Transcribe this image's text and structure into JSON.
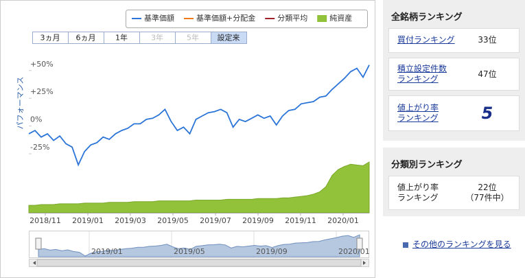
{
  "chart": {
    "type": "line",
    "legend": [
      {
        "name": "基準価額",
        "color": "#2b74d8"
      },
      {
        "name": "基準価額+分配金",
        "color": "#f07a1a"
      },
      {
        "name": "分類平均",
        "color": "#a0202a"
      },
      {
        "name": "純資産",
        "color": "#92c13a"
      }
    ],
    "ranges": [
      "3ヵ月",
      "6ヵ月",
      "1年",
      "3年",
      "5年",
      "設定来"
    ],
    "disabled_ranges": [
      3,
      4
    ],
    "selected_range": 5,
    "ylabel": "パフォーマンス",
    "ylim": [
      -38,
      61
    ],
    "yticks": [
      {
        "value": 50,
        "label": "+50%"
      },
      {
        "value": 25,
        "label": "+25%"
      },
      {
        "value": 0,
        "label": "0%"
      },
      {
        "value": -25,
        "label": "-25%"
      }
    ],
    "xticks": [
      "2018/11",
      "2019/01",
      "2019/03",
      "2019/05",
      "2019/07",
      "2019/09",
      "2019/11",
      "2020/01"
    ],
    "navigator_ticks": [
      "2019/01",
      "2019/05",
      "2019/09",
      "2020/01"
    ],
    "values": [
      -7,
      -4,
      -10,
      -7,
      -13,
      -9,
      -16,
      -19,
      -35,
      -23,
      -17,
      -15,
      -10,
      -12,
      -7,
      -4,
      -2,
      2,
      2,
      6,
      7,
      10,
      15,
      4,
      -4,
      -1,
      -7,
      6,
      9,
      12,
      13,
      15,
      12,
      -1,
      6,
      4,
      7,
      10,
      7,
      9,
      1,
      9,
      14,
      15,
      20,
      21,
      22,
      26,
      27,
      33,
      38,
      43,
      49,
      52,
      44,
      55
    ],
    "assets": [
      10,
      10,
      11,
      11,
      11,
      12,
      12,
      12,
      12,
      13,
      13,
      13,
      13,
      14,
      14,
      14,
      14,
      15,
      15,
      15,
      15,
      16,
      16,
      16,
      16,
      16,
      16,
      17,
      17,
      17,
      17,
      17,
      18,
      18,
      18,
      18,
      18,
      19,
      19,
      19,
      19,
      20,
      20,
      21,
      22,
      23,
      25,
      28,
      35,
      50,
      58,
      62,
      65,
      64,
      63,
      68
    ]
  },
  "sidebar": {
    "all": {
      "title": "全銘柄ランキング",
      "rows": [
        {
          "label_lines": [
            "買付ランキング"
          ],
          "rank": "33位"
        },
        {
          "label_lines": [
            "積立設定件数",
            "ランキング"
          ],
          "rank": "47位"
        },
        {
          "label_lines": [
            "値上がり率",
            "ランキング"
          ],
          "rank": "5"
        }
      ]
    },
    "category": {
      "title": "分類別ランキング",
      "rows": [
        {
          "label_lines": [
            "値上がり率",
            "ランキング"
          ],
          "rank_lines": [
            "22位",
            "（77件中）"
          ]
        }
      ]
    },
    "more_link": "その他のランキングを見る"
  }
}
